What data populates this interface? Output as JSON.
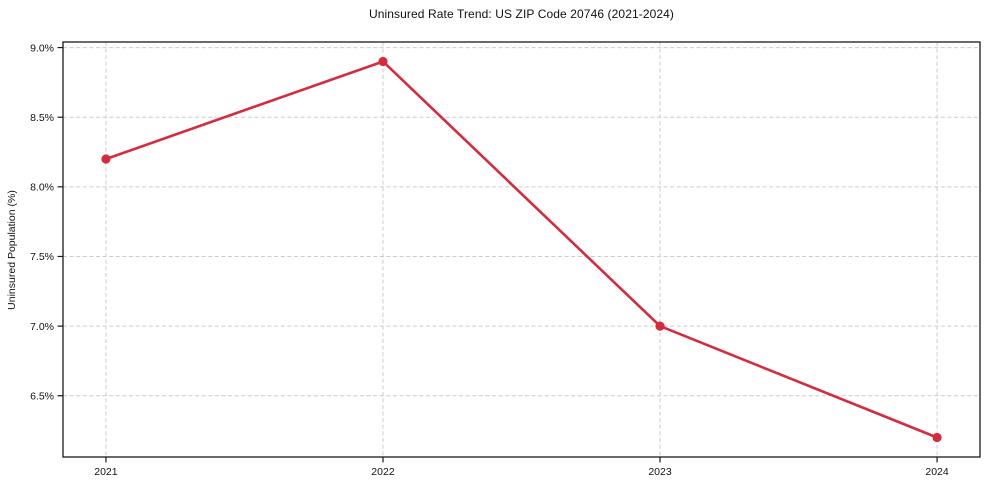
{
  "chart_data": {
    "type": "line",
    "title": "Uninsured Rate Trend: US ZIP Code 20746 (2021-2024)",
    "xlabel": "",
    "ylabel": "Uninsured Population (%)",
    "x": [
      2021,
      2022,
      2023,
      2024
    ],
    "x_tick_labels": [
      "2021",
      "2022",
      "2023",
      "2024"
    ],
    "series": [
      {
        "name": "Uninsured Population (%)",
        "values": [
          8.2,
          8.9,
          7.0,
          6.2
        ]
      }
    ],
    "y_ticks": [
      6.5,
      7.0,
      7.5,
      8.0,
      8.5,
      9.0
    ],
    "y_tick_labels": [
      "6.5%",
      "7.0%",
      "7.5%",
      "8.0%",
      "8.5%",
      "9.0%"
    ],
    "xlim": [
      2020.845,
      2024.155
    ],
    "ylim": [
      6.06,
      9.04
    ],
    "grid": "dashed",
    "legend_position": "none",
    "marker": "circle",
    "line_color": "#d62b3e",
    "grid_color": "#cccccc",
    "axis_color": "#1a1a1a",
    "text_color": "#111111"
  }
}
